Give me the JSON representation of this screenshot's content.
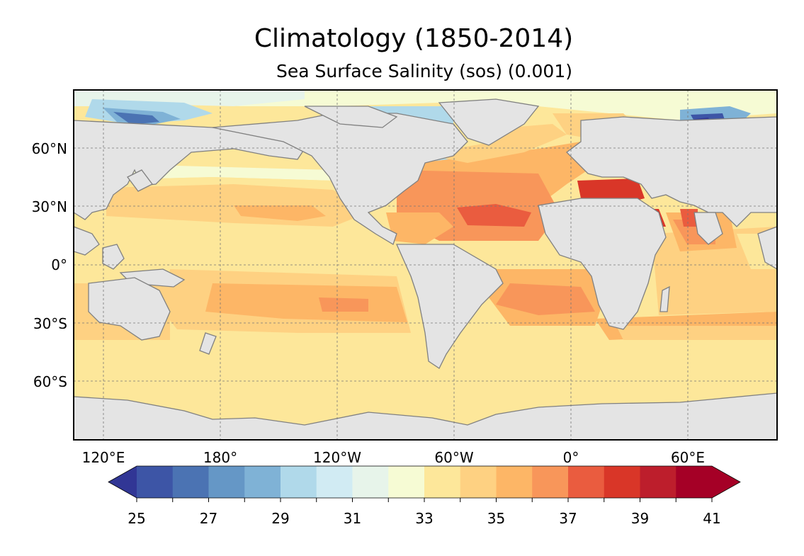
{
  "title": "Climatology (1850-2014)",
  "subtitle": "Sea Surface Salinity (sos) (0.001)",
  "map": {
    "projection": "PlateCarree",
    "central_longitude": "-160",
    "land_color": "#e4e4e4",
    "coastline_color": "#808080",
    "gridlines": "dashed",
    "lat_labels": [
      "60°N",
      "30°N",
      "0°",
      "30°S",
      "60°S"
    ],
    "lon_labels": [
      "120°E",
      "180°",
      "120°W",
      "60°W",
      "0°",
      "60°E"
    ]
  },
  "colorbar": {
    "min": 25,
    "max": 41,
    "step": 1,
    "extend": "both",
    "tick_labels": [
      "25",
      "27",
      "29",
      "31",
      "33",
      "35",
      "37",
      "39",
      "41"
    ],
    "colors": [
      "#313695",
      "#3d55a6",
      "#4b73b3",
      "#6597c6",
      "#7fb2d6",
      "#b0d9ea",
      "#d1ebf3",
      "#e7f4ea",
      "#f6fbd4",
      "#fde79a",
      "#fed182",
      "#fdb666",
      "#f8965a",
      "#ea5c3f",
      "#d93628",
      "#bd1e2c",
      "#a50026"
    ],
    "below_color": "#313695",
    "above_color": "#a50026"
  }
}
